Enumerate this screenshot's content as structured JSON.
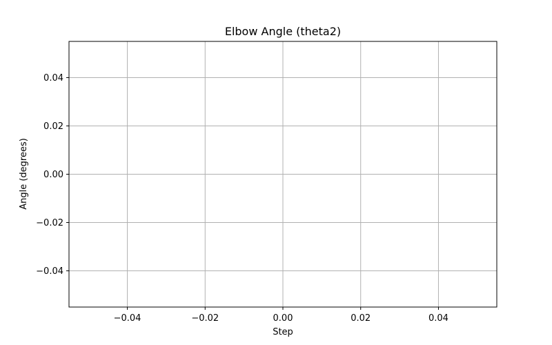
{
  "chart_data": {
    "type": "line",
    "title": "Elbow Angle (theta2)",
    "xlabel": "Step",
    "ylabel": "Angle (degrees)",
    "xlim": [
      -0.055,
      0.055
    ],
    "ylim": [
      -0.055,
      0.055
    ],
    "xticks": [
      -0.04,
      -0.02,
      0.0,
      0.02,
      0.04
    ],
    "xtick_labels": [
      "−0.04",
      "−0.02",
      "0.00",
      "0.02",
      "0.04"
    ],
    "yticks": [
      -0.04,
      -0.02,
      0.0,
      0.02,
      0.04
    ],
    "ytick_labels": [
      "−0.04",
      "−0.02",
      "0.00",
      "0.02",
      "0.04"
    ],
    "grid": true,
    "series": []
  },
  "colors": {
    "grid": "#b0b0b0",
    "axes": "#000000",
    "background": "#ffffff"
  }
}
